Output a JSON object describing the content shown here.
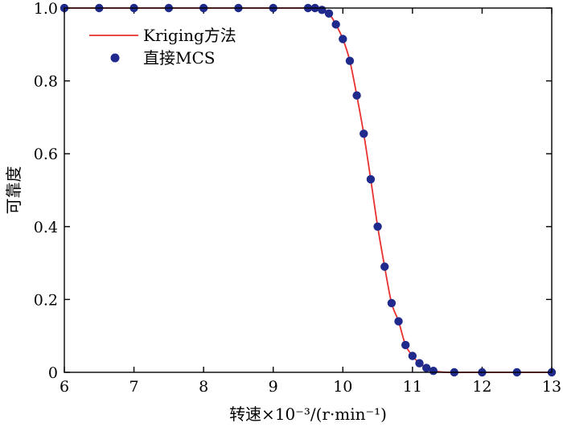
{
  "chart_data": {
    "type": "line",
    "xlabel": "转速×10⁻³/(r·min⁻¹)",
    "ylabel": "可靠度",
    "xlim": [
      6,
      13
    ],
    "ylim": [
      0,
      1.0
    ],
    "x_ticks": [
      "6",
      "7",
      "8",
      "9",
      "10",
      "11",
      "12",
      "13"
    ],
    "y_ticks": [
      "0",
      "0.2",
      "0.4",
      "0.6",
      "0.8",
      "1.0"
    ],
    "legend_position": "top-left",
    "grid": false,
    "series": [
      {
        "name": "Kriging方法",
        "kind": "line",
        "color": "#e8312f",
        "x": [
          6.0,
          9.0,
          9.5,
          9.7,
          9.8,
          9.9,
          10.0,
          10.1,
          10.2,
          10.3,
          10.4,
          10.5,
          10.6,
          10.7,
          10.8,
          10.9,
          11.0,
          11.1,
          11.2,
          11.3,
          11.5,
          12.0,
          13.0
        ],
        "y": [
          1.0,
          1.0,
          1.0,
          0.995,
          0.985,
          0.955,
          0.915,
          0.855,
          0.76,
          0.655,
          0.53,
          0.4,
          0.29,
          0.19,
          0.14,
          0.075,
          0.045,
          0.025,
          0.012,
          0.004,
          0.0,
          0.0,
          0.0
        ]
      },
      {
        "name": "直接MCS",
        "kind": "scatter",
        "color": "#1f2a8c",
        "x": [
          6.0,
          6.5,
          7.0,
          7.5,
          8.0,
          8.5,
          9.0,
          9.5,
          9.6,
          9.7,
          9.8,
          9.9,
          10.0,
          10.1,
          10.2,
          10.3,
          10.4,
          10.5,
          10.6,
          10.7,
          10.8,
          10.9,
          11.0,
          11.1,
          11.2,
          11.3,
          11.6,
          12.0,
          12.5,
          13.0
        ],
        "y": [
          1.0,
          1.0,
          1.0,
          1.0,
          1.0,
          1.0,
          1.0,
          1.0,
          1.0,
          0.995,
          0.985,
          0.955,
          0.915,
          0.855,
          0.76,
          0.655,
          0.53,
          0.4,
          0.29,
          0.19,
          0.14,
          0.075,
          0.045,
          0.025,
          0.012,
          0.004,
          0.0,
          0.0,
          0.0,
          0.0
        ]
      }
    ]
  }
}
